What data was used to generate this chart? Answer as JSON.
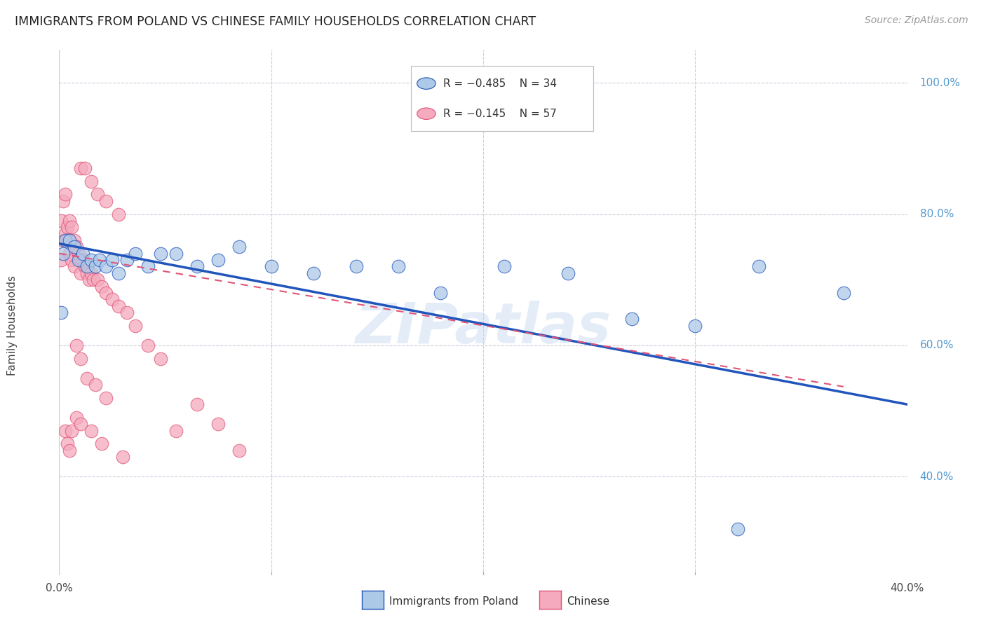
{
  "title": "IMMIGRANTS FROM POLAND VS CHINESE FAMILY HOUSEHOLDS CORRELATION CHART",
  "source": "Source: ZipAtlas.com",
  "ylabel": "Family Households",
  "legend_blue_r": "-0.485",
  "legend_blue_n": "34",
  "legend_pink_r": "-0.145",
  "legend_pink_n": "57",
  "legend_label_blue": "Immigrants from Poland",
  "legend_label_pink": "Chinese",
  "blue_color": "#adc9e8",
  "blue_line_color": "#2255bb",
  "pink_color": "#f5aabe",
  "pink_line_color": "#e05575",
  "background_color": "#ffffff",
  "grid_color": "#ccccdd",
  "title_color": "#222222",
  "right_axis_color": "#5599cc",
  "source_color": "#999999",
  "xlim": [
    0.0,
    0.4
  ],
  "ylim": [
    0.25,
    1.05
  ],
  "watermark": "ZIPatlas",
  "blue_scatter_x": [
    0.001,
    0.002,
    0.003,
    0.005,
    0.007,
    0.009,
    0.011,
    0.013,
    0.015,
    0.017,
    0.019,
    0.022,
    0.025,
    0.028,
    0.032,
    0.036,
    0.042,
    0.048,
    0.055,
    0.065,
    0.075,
    0.085,
    0.1,
    0.12,
    0.14,
    0.16,
    0.18,
    0.21,
    0.24,
    0.27,
    0.3,
    0.33,
    0.37,
    0.32
  ],
  "blue_scatter_y": [
    0.65,
    0.74,
    0.76,
    0.76,
    0.75,
    0.73,
    0.74,
    0.72,
    0.73,
    0.72,
    0.73,
    0.72,
    0.73,
    0.71,
    0.73,
    0.74,
    0.72,
    0.74,
    0.74,
    0.72,
    0.73,
    0.75,
    0.72,
    0.71,
    0.72,
    0.72,
    0.68,
    0.72,
    0.71,
    0.64,
    0.63,
    0.72,
    0.68,
    0.32
  ],
  "blue_line_x": [
    0.0,
    0.4
  ],
  "blue_line_y": [
    0.755,
    0.51
  ],
  "pink_scatter_x": [
    0.001,
    0.001,
    0.002,
    0.002,
    0.003,
    0.003,
    0.004,
    0.004,
    0.005,
    0.005,
    0.006,
    0.006,
    0.007,
    0.007,
    0.008,
    0.009,
    0.01,
    0.01,
    0.011,
    0.012,
    0.013,
    0.014,
    0.015,
    0.016,
    0.018,
    0.02,
    0.022,
    0.025,
    0.028,
    0.032,
    0.036,
    0.042,
    0.048,
    0.055,
    0.065,
    0.075,
    0.085,
    0.01,
    0.012,
    0.015,
    0.018,
    0.022,
    0.028,
    0.008,
    0.01,
    0.013,
    0.017,
    0.022,
    0.003,
    0.004,
    0.005,
    0.006,
    0.008,
    0.01,
    0.015,
    0.02,
    0.03
  ],
  "pink_scatter_y": [
    0.73,
    0.79,
    0.76,
    0.82,
    0.77,
    0.83,
    0.78,
    0.76,
    0.79,
    0.74,
    0.78,
    0.73,
    0.76,
    0.72,
    0.75,
    0.74,
    0.73,
    0.71,
    0.73,
    0.72,
    0.71,
    0.7,
    0.71,
    0.7,
    0.7,
    0.69,
    0.68,
    0.67,
    0.66,
    0.65,
    0.63,
    0.6,
    0.58,
    0.47,
    0.51,
    0.48,
    0.44,
    0.87,
    0.87,
    0.85,
    0.83,
    0.82,
    0.8,
    0.6,
    0.58,
    0.55,
    0.54,
    0.52,
    0.47,
    0.45,
    0.44,
    0.47,
    0.49,
    0.48,
    0.47,
    0.45,
    0.43
  ],
  "pink_line_x": [
    0.0,
    0.37
  ],
  "pink_line_y": [
    0.74,
    0.537
  ]
}
